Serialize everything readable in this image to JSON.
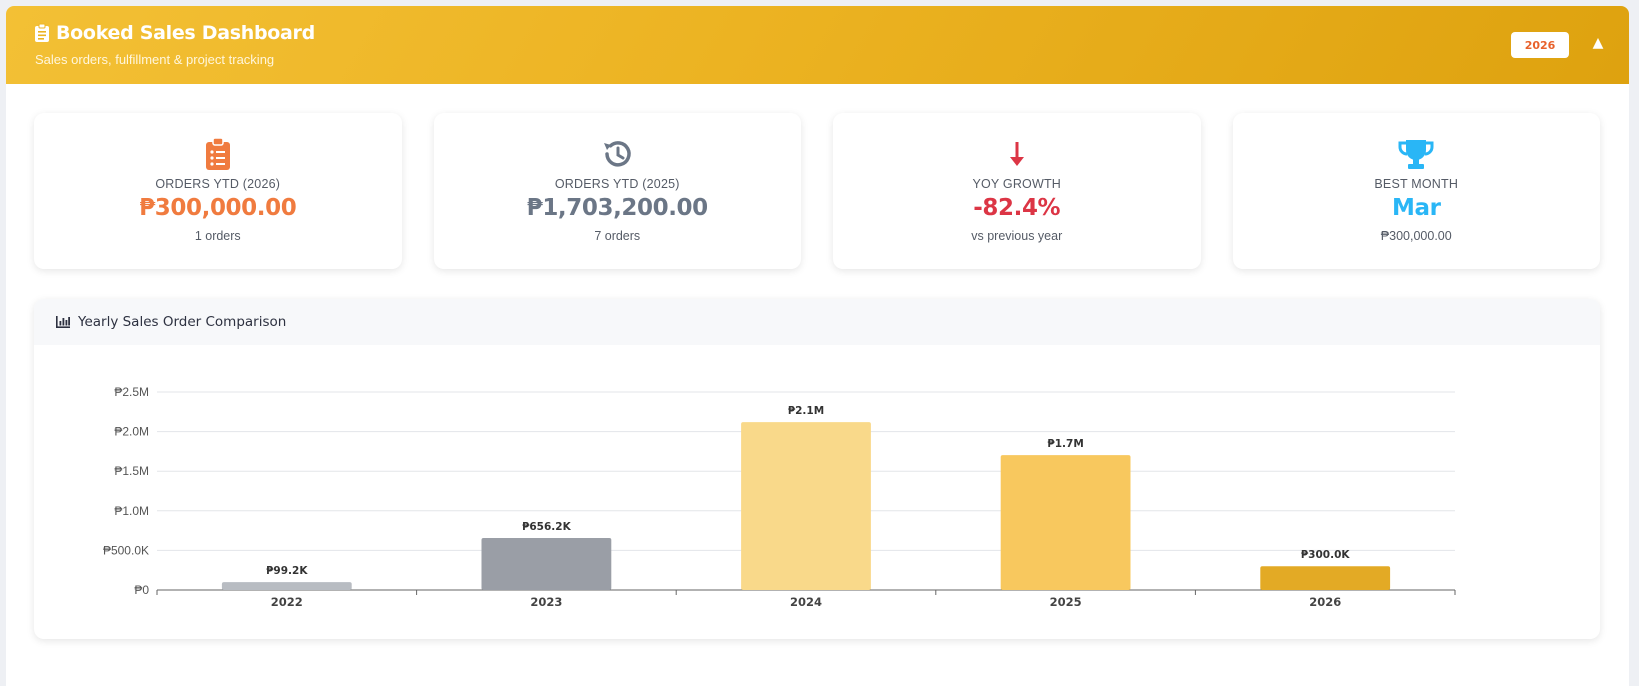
{
  "header": {
    "title": "Booked Sales Dashboard",
    "subtitle": "Sales orders, fulfillment & project tracking",
    "year": "2026",
    "collapse_icon": "caret-up-icon",
    "title_icon": "clipboard-icon"
  },
  "colors": {
    "header_start": "#f3c035",
    "header_end": "#dea20f",
    "orange": "#f07b3f",
    "slate": "#6b7686",
    "red": "#dc3545",
    "sky": "#29b6f6"
  },
  "kpis": [
    {
      "icon": "clipboard-list-icon",
      "label": "ORDERS YTD (2026)",
      "value": "₱300,000.00",
      "sub": "1 orders",
      "color": "#f07b3f"
    },
    {
      "icon": "history-icon",
      "label": "ORDERS YTD (2025)",
      "value": "₱1,703,200.00",
      "sub": "7 orders",
      "color": "#6b7686"
    },
    {
      "icon": "arrow-down-icon",
      "label": "YOY GROWTH",
      "value": "-82.4%",
      "sub": "vs previous year",
      "color": "#dc3545"
    },
    {
      "icon": "trophy-icon",
      "label": "BEST MONTH",
      "value": "Mar",
      "sub": "₱300,000.00",
      "color": "#29b6f6"
    }
  ],
  "chart_section": {
    "title": "Yearly Sales Order Comparison",
    "icon": "bar-chart-icon"
  },
  "chart_data": {
    "type": "bar",
    "categories": [
      "2022",
      "2023",
      "2024",
      "2025",
      "2026"
    ],
    "values": [
      99200,
      656200,
      2120000,
      1703200,
      300000
    ],
    "data_labels": [
      "₱99.2K",
      "₱656.2K",
      "₱2.1M",
      "₱1.7M",
      "₱300.0K"
    ],
    "bar_colors": [
      "#b8bcc2",
      "#9a9ea6",
      "#f9d98a",
      "#f8c85e",
      "#e3aa25"
    ],
    "y_ticks": [
      "₱0",
      "₱500.0K",
      "₱1.0M",
      "₱1.5M",
      "₱2.0M",
      "₱2.5M"
    ],
    "ylim": [
      0,
      2500000
    ],
    "grid": true
  }
}
